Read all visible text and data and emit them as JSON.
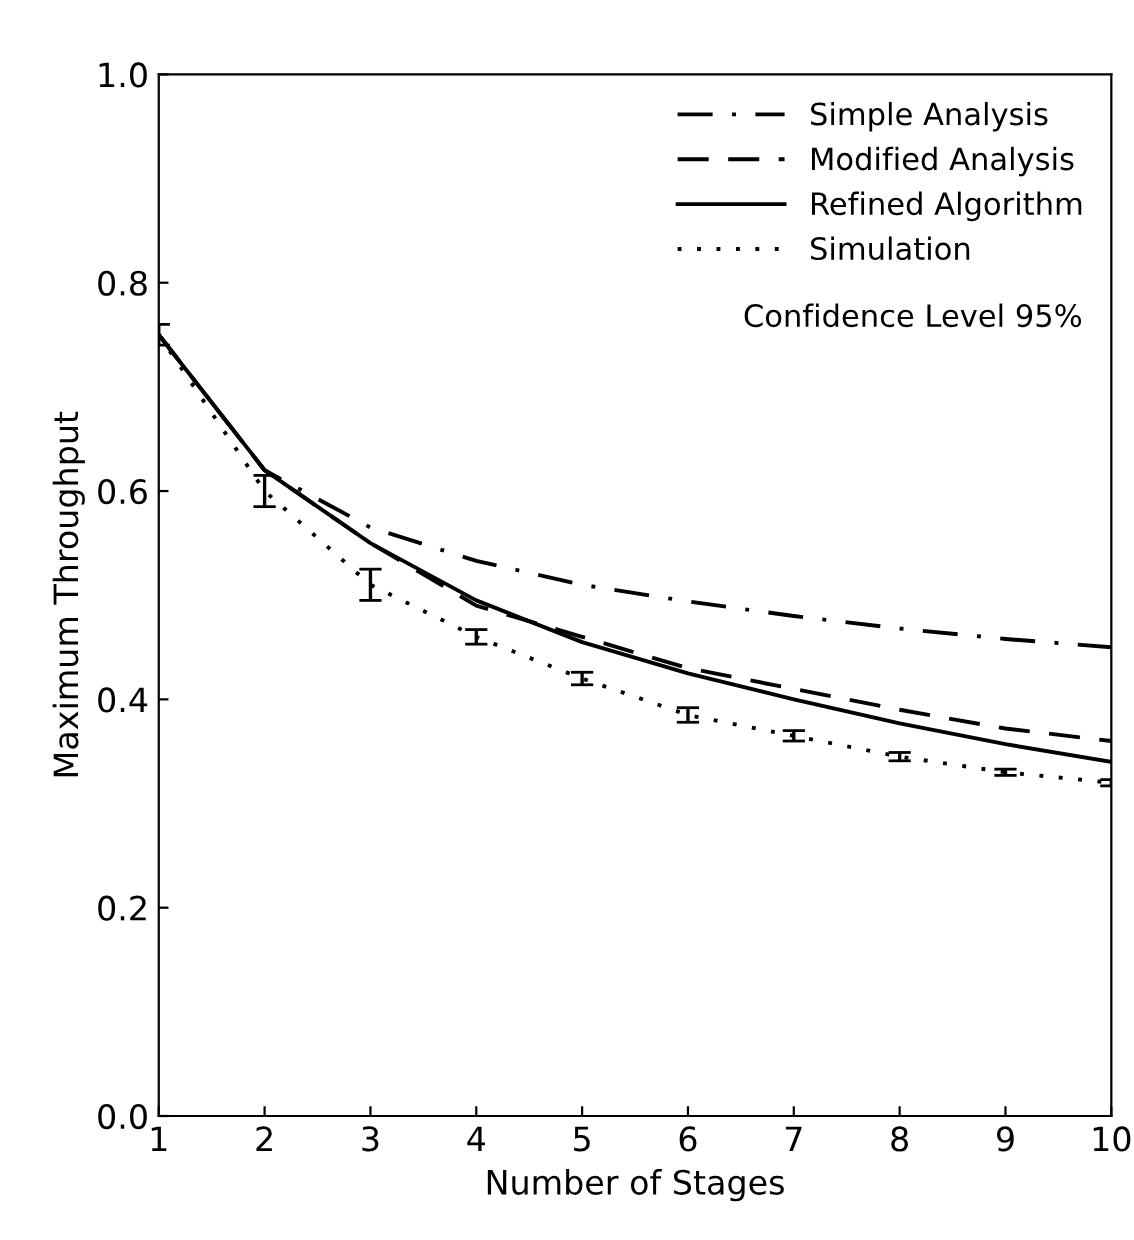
{
  "chart_data": {
    "type": "line",
    "xlabel": "Number of Stages",
    "ylabel": "Maximum Throughput",
    "x": [
      1,
      2,
      3,
      4,
      5,
      6,
      7,
      8,
      9,
      10
    ],
    "xlim": [
      1,
      10
    ],
    "ylim": [
      0,
      1
    ],
    "xticks": [
      1,
      2,
      3,
      4,
      5,
      6,
      7,
      8,
      9,
      10
    ],
    "yticks": [
      {
        "value": 0,
        "label": "0.0"
      },
      {
        "value": 0.2,
        "label": "0.2"
      },
      {
        "value": 0.4,
        "label": "0.4"
      },
      {
        "value": 0.6,
        "label": "0.6"
      },
      {
        "value": 0.8,
        "label": "0.8"
      },
      {
        "value": 1,
        "label": "1.0"
      }
    ],
    "grid": false,
    "legend": "top right",
    "marker": "none",
    "series": [
      {
        "name": "Simple Analysis",
        "color": "#000000",
        "line_style": "dashdot",
        "values": [
          0.75,
          0.62,
          0.565,
          0.533,
          0.51,
          0.494,
          0.48,
          0.468,
          0.458,
          0.45
        ]
      },
      {
        "name": "Modified Analysis",
        "color": "#000000",
        "line_style": "dashed",
        "values": [
          0.75,
          0.62,
          0.55,
          0.49,
          0.46,
          0.43,
          0.41,
          0.39,
          0.372,
          0.36
        ]
      },
      {
        "name": "Refined Algorithm",
        "color": "#000000",
        "line_style": "solid",
        "values": [
          0.75,
          0.62,
          0.55,
          0.495,
          0.455,
          0.425,
          0.4,
          0.377,
          0.357,
          0.34
        ]
      },
      {
        "name": "Simulation",
        "color": "#000000",
        "line_style": "dotted",
        "values": [
          0.75,
          0.6,
          0.51,
          0.46,
          0.42,
          0.385,
          0.365,
          0.345,
          0.33,
          0.32
        ],
        "errors": [
          0.01,
          0.015,
          0.015,
          0.007,
          0.006,
          0.007,
          0.005,
          0.004,
          0.003,
          0.003
        ]
      }
    ],
    "annotations": [
      "Confidence Level 95%"
    ]
  }
}
